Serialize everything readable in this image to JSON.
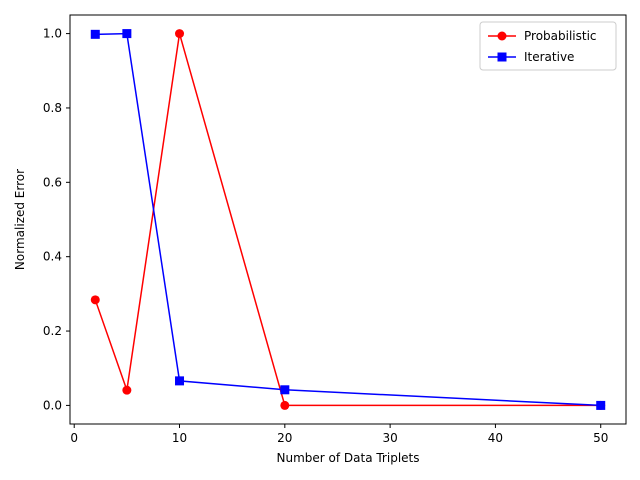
{
  "chart_data": {
    "type": "line",
    "title": "",
    "xlabel": "Number of Data Triplets",
    "ylabel": "Normalized Error",
    "xlim": [
      -0.4,
      52.4
    ],
    "ylim": [
      -0.05,
      1.05
    ],
    "xticks": [
      0,
      10,
      20,
      30,
      40,
      50
    ],
    "yticks": [
      0.0,
      0.2,
      0.4,
      0.6,
      0.8,
      1.0
    ],
    "ytick_labels": [
      "0.0",
      "0.2",
      "0.4",
      "0.6",
      "0.8",
      "1.0"
    ],
    "grid": false,
    "legend_position": "upper-right",
    "series": [
      {
        "name": "Probabilistic",
        "color": "#ff0000",
        "marker": "circle",
        "x": [
          2,
          5,
          10,
          20,
          50
        ],
        "y": [
          0.284,
          0.041,
          1.0,
          0.0,
          0.0
        ]
      },
      {
        "name": "Iterative",
        "color": "#0000ff",
        "marker": "square",
        "x": [
          2,
          5,
          10,
          20,
          50
        ],
        "y": [
          0.998,
          1.0,
          0.066,
          0.042,
          0.0
        ]
      }
    ]
  }
}
